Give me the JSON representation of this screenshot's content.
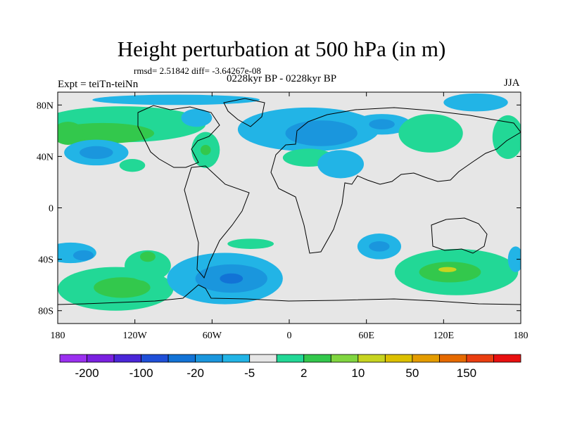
{
  "title": "Height perturbation at 500 hPa (in m)",
  "stats": "rmsd= 2.51842 diff= -3.64267e-08",
  "period": "0228kyr BP - 0228kyr BP",
  "experiment": "Expt = teiTn-teiNn",
  "season": "JJA",
  "map": {
    "lon_range": [
      -180,
      180
    ],
    "lat_range": [
      -90,
      90
    ],
    "lon_ticks": [
      {
        "value": -180,
        "label": "180"
      },
      {
        "value": -120,
        "label": "120W"
      },
      {
        "value": -60,
        "label": "60W"
      },
      {
        "value": 0,
        "label": "0"
      },
      {
        "value": 60,
        "label": "60E"
      },
      {
        "value": 120,
        "label": "120E"
      },
      {
        "value": 180,
        "label": "180"
      }
    ],
    "lat_ticks": [
      {
        "value": 80,
        "label": "80N"
      },
      {
        "value": 40,
        "label": "40N"
      },
      {
        "value": 0,
        "label": "0"
      },
      {
        "value": -40,
        "label": "40S"
      },
      {
        "value": -80,
        "label": "80S"
      }
    ],
    "background_color": "#e6e6e6",
    "features": [
      {
        "lon": -130,
        "lat": 65,
        "rx": 65,
        "ry": 14,
        "cls": "pos1"
      },
      {
        "lon": -145,
        "lat": 58,
        "rx": 40,
        "ry": 8,
        "cls": "pos2"
      },
      {
        "lon": -172,
        "lat": 58,
        "rx": 12,
        "ry": 9,
        "cls": "pos2"
      },
      {
        "lon": -150,
        "lat": 43,
        "rx": 25,
        "ry": 10,
        "cls": "neg1"
      },
      {
        "lon": -150,
        "lat": 43,
        "rx": 13,
        "ry": 5,
        "cls": "neg2"
      },
      {
        "lon": -122,
        "lat": 33,
        "rx": 10,
        "ry": 5,
        "cls": "pos1"
      },
      {
        "lon": -65,
        "lat": 45,
        "rx": 11,
        "ry": 14,
        "cls": "pos1"
      },
      {
        "lon": -65,
        "lat": 45,
        "rx": 4,
        "ry": 4,
        "cls": "pos2"
      },
      {
        "lon": -88,
        "lat": 84,
        "rx": 65,
        "ry": 4,
        "cls": "neg1"
      },
      {
        "lon": -72,
        "lat": 70,
        "rx": 12,
        "ry": 7,
        "cls": "neg1"
      },
      {
        "lon": -15,
        "lat": 66,
        "rx": 15,
        "ry": 8,
        "cls": "pos1"
      },
      {
        "lon": 15,
        "lat": 61,
        "rx": 55,
        "ry": 17,
        "cls": "neg1"
      },
      {
        "lon": 25,
        "lat": 58,
        "rx": 28,
        "ry": 10,
        "cls": "neg2"
      },
      {
        "lon": 15,
        "lat": 39,
        "rx": 20,
        "ry": 7,
        "cls": "pos1"
      },
      {
        "lon": 40,
        "lat": 34,
        "rx": 18,
        "ry": 11,
        "cls": "neg1"
      },
      {
        "lon": 72,
        "lat": 65,
        "rx": 23,
        "ry": 8,
        "cls": "neg1"
      },
      {
        "lon": 72,
        "lat": 65,
        "rx": 10,
        "ry": 4,
        "cls": "neg2"
      },
      {
        "lon": 110,
        "lat": 58,
        "rx": 25,
        "ry": 15,
        "cls": "pos1"
      },
      {
        "lon": 145,
        "lat": 82,
        "rx": 25,
        "ry": 7,
        "cls": "neg1"
      },
      {
        "lon": 170,
        "lat": 55,
        "rx": 12,
        "ry": 17,
        "cls": "pos1"
      },
      {
        "lon": -170,
        "lat": -35,
        "rx": 20,
        "ry": 8,
        "cls": "neg1"
      },
      {
        "lon": -160,
        "lat": -37,
        "rx": 8,
        "ry": 4,
        "cls": "neg2"
      },
      {
        "lon": -135,
        "lat": -63,
        "rx": 45,
        "ry": 17,
        "cls": "pos1"
      },
      {
        "lon": -130,
        "lat": -62,
        "rx": 22,
        "ry": 8,
        "cls": "pos2"
      },
      {
        "lon": -110,
        "lat": -45,
        "rx": 18,
        "ry": 12,
        "cls": "pos1"
      },
      {
        "lon": -110,
        "lat": -38,
        "rx": 6,
        "ry": 4,
        "cls": "pos2"
      },
      {
        "lon": -50,
        "lat": -55,
        "rx": 45,
        "ry": 20,
        "cls": "neg1"
      },
      {
        "lon": -45,
        "lat": -55,
        "rx": 28,
        "ry": 11,
        "cls": "neg2"
      },
      {
        "lon": -45,
        "lat": -55,
        "rx": 9,
        "ry": 4,
        "cls": "neg3"
      },
      {
        "lon": -30,
        "lat": -28,
        "rx": 18,
        "ry": 4,
        "cls": "pos1"
      },
      {
        "lon": 70,
        "lat": -30,
        "rx": 17,
        "ry": 10,
        "cls": "neg1"
      },
      {
        "lon": 70,
        "lat": -30,
        "rx": 8,
        "ry": 4,
        "cls": "neg2"
      },
      {
        "lon": 130,
        "lat": -50,
        "rx": 48,
        "ry": 18,
        "cls": "pos1"
      },
      {
        "lon": 125,
        "lat": -50,
        "rx": 24,
        "ry": 8,
        "cls": "pos2"
      },
      {
        "lon": 123,
        "lat": -48,
        "rx": 7,
        "ry": 2,
        "cls": "pos3"
      },
      {
        "lon": 176,
        "lat": -40,
        "rx": 6,
        "ry": 10,
        "cls": "neg1"
      }
    ]
  },
  "colorbar": {
    "colors": [
      "#9b30f0",
      "#7a20e0",
      "#4a26d8",
      "#1f4fd8",
      "#1273d6",
      "#1a96dd",
      "#22b4e6",
      "#e6e6e6",
      "#22d896",
      "#33c84c",
      "#80d640",
      "#c7d420",
      "#dcc000",
      "#e49c00",
      "#e66a00",
      "#ea3e10",
      "#e81010"
    ],
    "labels": [
      "-200",
      "-100",
      "-20",
      "-5",
      "2",
      "10",
      "50",
      "150"
    ]
  }
}
